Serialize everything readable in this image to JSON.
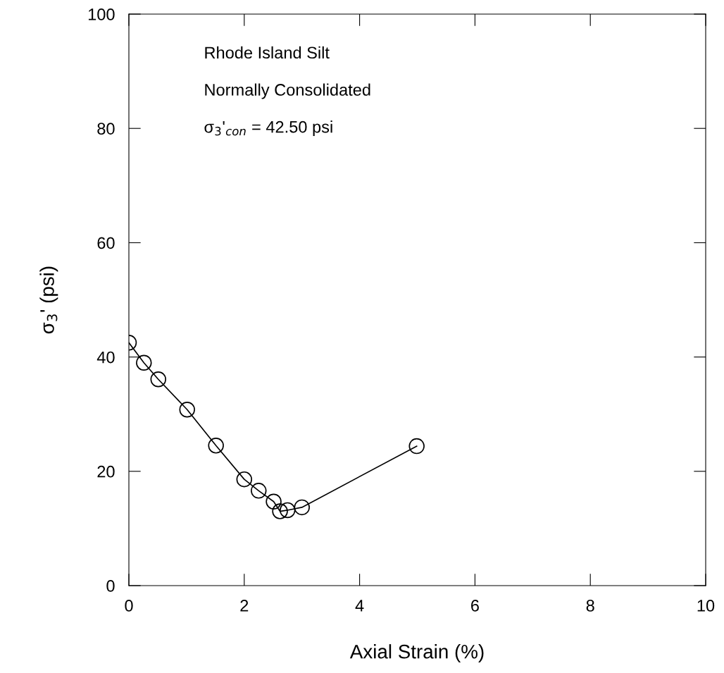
{
  "chart_data": {
    "type": "line",
    "xlabel": "Axial Strain (%)",
    "ylabel": "σ$_{3}$' (psi)",
    "annotations": [
      "Rhode Island Silt",
      "Normally Consolidated",
      "σ$_{3}$'$_{con}$ = 42.50 psi"
    ],
    "series": [
      {
        "color": "#000000",
        "x": [
          0,
          0.26,
          0.51,
          1.01,
          1.51,
          2.0,
          2.25,
          2.51,
          2.62,
          2.75,
          3.0,
          4.99
        ],
        "values": [
          42.5,
          39.0,
          36.1,
          30.8,
          24.5,
          18.6,
          16.6,
          14.7,
          13.0,
          13.2,
          13.7,
          24.4
        ]
      }
    ],
    "marker": "circle",
    "line_style": "solid",
    "grid": false,
    "legend": false,
    "xlim": [
      0,
      10
    ],
    "xticks": [
      0,
      2,
      4,
      6,
      8,
      10
    ],
    "ylim": [
      0,
      100
    ],
    "yticks": [
      0,
      20,
      40,
      60,
      80,
      100
    ]
  }
}
